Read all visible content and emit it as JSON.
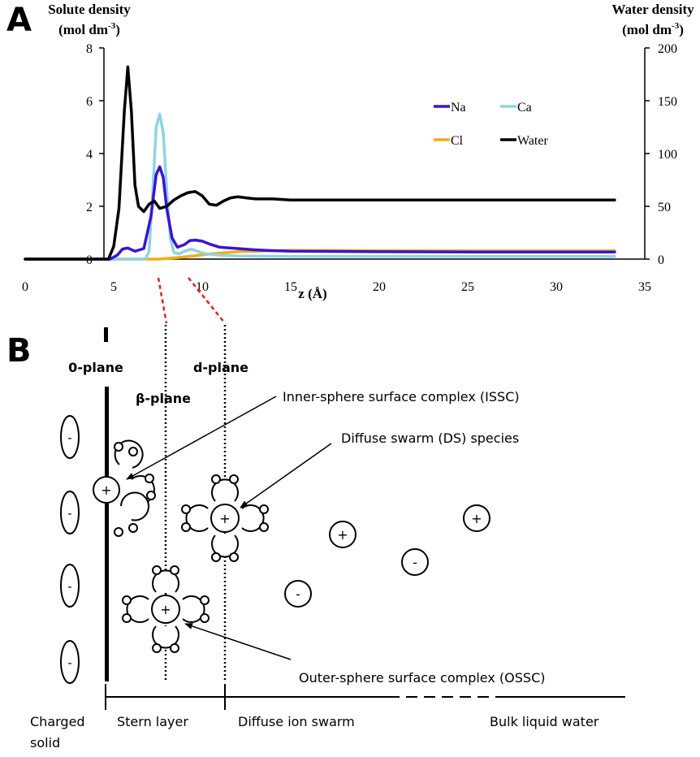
{
  "panel_a": {
    "label": "A",
    "left_axis_title_line1": "Solute density",
    "left_axis_title_line2": "(mol dm",
    "left_axis_title_sup": "-3",
    "left_axis_title_end": ")",
    "right_axis_title_line1": "Water density",
    "right_axis_title_line2": "(mol dm",
    "right_axis_title_sup": "-3",
    "right_axis_title_end": ")",
    "x_axis_title": "z (Å)"
  },
  "chart_data": {
    "type": "line",
    "xlabel": "z (Å)",
    "ylabel": "Solute density (mol dm-3)",
    "y2label": "Water density (mol dm-3)",
    "xlim": [
      0,
      35
    ],
    "ylim": [
      0,
      8
    ],
    "y2lim": [
      0,
      200
    ],
    "x_ticks": [
      0,
      5,
      10,
      15,
      20,
      25,
      30,
      35
    ],
    "y_ticks": [
      0,
      2,
      4,
      6,
      8
    ],
    "y2_ticks": [
      0,
      50,
      100,
      150,
      200
    ],
    "legend_position": "top-right",
    "series": [
      {
        "name": "Na",
        "axis": "left",
        "color": "#3a13d6",
        "x": [
          0,
          4.8,
          5.2,
          5.5,
          5.8,
          6.2,
          6.7,
          7.1,
          7.4,
          7.6,
          7.8,
          8.0,
          8.3,
          8.6,
          9.0,
          9.3,
          9.6,
          10.0,
          10.5,
          11.0,
          12.0,
          13.0,
          14.0,
          15.0,
          20.0,
          25.0,
          30.0,
          33.3
        ],
        "y": [
          0,
          0,
          0.15,
          0.38,
          0.42,
          0.3,
          0.4,
          1.6,
          3.2,
          3.5,
          3.1,
          1.9,
          0.8,
          0.45,
          0.55,
          0.7,
          0.72,
          0.68,
          0.55,
          0.45,
          0.4,
          0.35,
          0.32,
          0.3,
          0.28,
          0.27,
          0.27,
          0.27
        ]
      },
      {
        "name": "Ca",
        "axis": "left",
        "color": "#8fd3e4",
        "x": [
          0,
          6.8,
          7.0,
          7.2,
          7.4,
          7.6,
          7.8,
          8.0,
          8.2,
          8.4,
          8.7,
          9.0,
          9.4,
          9.8,
          10.2,
          11.0,
          12.0,
          15.0,
          20.0,
          25.0,
          30.0,
          33.3
        ],
        "y": [
          0,
          0,
          0.3,
          2.5,
          5.0,
          5.5,
          4.8,
          2.6,
          0.8,
          0.25,
          0.2,
          0.3,
          0.38,
          0.28,
          0.2,
          0.15,
          0.12,
          0.1,
          0.1,
          0.1,
          0.1,
          0.1
        ]
      },
      {
        "name": "Cl",
        "axis": "left",
        "color": "#f2ad13",
        "x": [
          0,
          7.5,
          8.5,
          9.5,
          10.5,
          12.0,
          14.0,
          15.0,
          20.0,
          25.0,
          30.0,
          33.3
        ],
        "y": [
          0,
          0,
          0.05,
          0.12,
          0.2,
          0.28,
          0.32,
          0.33,
          0.32,
          0.31,
          0.31,
          0.31
        ]
      },
      {
        "name": "Water",
        "axis": "right",
        "color": "#000000",
        "x": [
          0,
          4.7,
          5.0,
          5.3,
          5.6,
          5.8,
          6.0,
          6.2,
          6.4,
          6.7,
          7.0,
          7.3,
          7.6,
          8.0,
          8.4,
          8.8,
          9.2,
          9.6,
          10.0,
          10.4,
          10.8,
          11.2,
          11.6,
          12.0,
          12.5,
          13.0,
          14.0,
          15.0,
          20.0,
          25.0,
          30.0,
          33.3
        ],
        "y": [
          0,
          0,
          12,
          48,
          140,
          182,
          140,
          70,
          50,
          45,
          52,
          55,
          48,
          50,
          56,
          60,
          63,
          64,
          60,
          52,
          51,
          55,
          58,
          59,
          58,
          57,
          57,
          56,
          56,
          56,
          56,
          56
        ]
      }
    ]
  },
  "panel_b": {
    "label": "B",
    "plane_0": "0-plane",
    "plane_beta": "β-plane",
    "plane_d": "d-plane",
    "issc_label": "Inner-sphere surface complex (ISSC)",
    "ds_label": "Diffuse swarm (DS) species",
    "ossc_label": "Outer-sphere surface complex (OSSC)",
    "region_solid_line1": "Charged",
    "region_solid_line2": "solid",
    "region_stern": "Stern layer",
    "region_diffuse": "Diffuse ion swarm",
    "region_bulk": "Bulk liquid water",
    "plus_sign": "+",
    "minus_sign": "-"
  }
}
